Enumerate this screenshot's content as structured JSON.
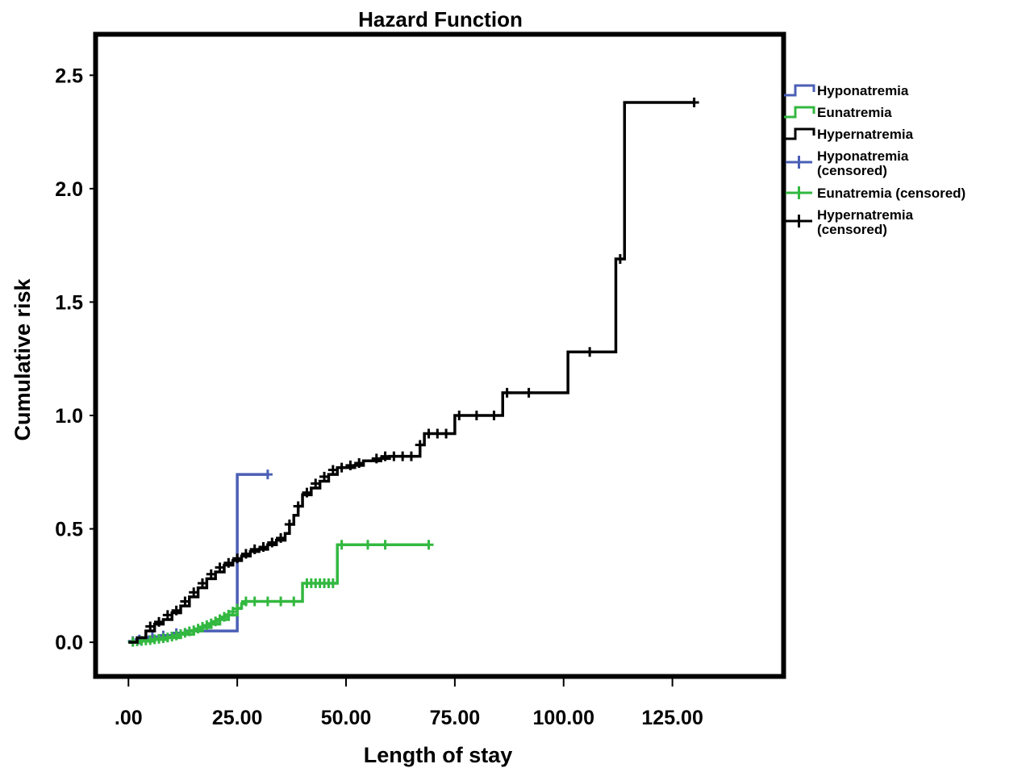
{
  "chart_data": {
    "type": "line",
    "title": "Hazard Function",
    "xlabel": "Length of stay",
    "ylabel": "Cumulative risk",
    "xlim": [
      -7,
      150
    ],
    "ylim": [
      -0.14,
      2.67
    ],
    "x_ticks": [
      {
        "value": 0,
        "label": ".00"
      },
      {
        "value": 25,
        "label": "25.00"
      },
      {
        "value": 50,
        "label": "50.00"
      },
      {
        "value": 75,
        "label": "75.00"
      },
      {
        "value": 100,
        "label": "100.00"
      },
      {
        "value": 125,
        "label": "125.00"
      }
    ],
    "y_ticks": [
      {
        "value": 0,
        "label": "0.0"
      },
      {
        "value": 0.5,
        "label": "0.5"
      },
      {
        "value": 1.0,
        "label": "1.0"
      },
      {
        "value": 1.5,
        "label": "1.5"
      },
      {
        "value": 2.0,
        "label": "2.0"
      },
      {
        "value": 2.5,
        "label": "2.5"
      }
    ],
    "grid": false,
    "legend_position": "right",
    "series": [
      {
        "name": "Hyponatremia",
        "color": "#4a5fb5",
        "steps": [
          [
            0,
            0
          ],
          [
            2,
            0.01
          ],
          [
            4,
            0.02
          ],
          [
            7,
            0.03
          ],
          [
            10,
            0.04
          ],
          [
            13,
            0.05
          ],
          [
            25,
            0.05
          ],
          [
            25,
            0.74
          ],
          [
            32,
            0.74
          ]
        ],
        "censored": [
          [
            1,
            0.005
          ],
          [
            2.5,
            0.012
          ],
          [
            4,
            0.02
          ],
          [
            5.5,
            0.025
          ],
          [
            8,
            0.03
          ],
          [
            11,
            0.04
          ],
          [
            32,
            0.74
          ]
        ]
      },
      {
        "name": "Eunatremia",
        "color": "#33b840",
        "steps": [
          [
            0,
            0
          ],
          [
            3,
            0.005
          ],
          [
            6,
            0.012
          ],
          [
            9,
            0.02
          ],
          [
            12,
            0.035
          ],
          [
            15,
            0.05
          ],
          [
            17,
            0.065
          ],
          [
            19,
            0.08
          ],
          [
            21,
            0.1
          ],
          [
            23,
            0.12
          ],
          [
            25,
            0.15
          ],
          [
            26,
            0.17
          ],
          [
            27,
            0.18
          ],
          [
            40,
            0.18
          ],
          [
            40,
            0.26
          ],
          [
            48,
            0.26
          ],
          [
            48,
            0.43
          ],
          [
            69,
            0.43
          ]
        ],
        "censored": [
          [
            1,
            0.002
          ],
          [
            2,
            0.004
          ],
          [
            3,
            0.006
          ],
          [
            4,
            0.008
          ],
          [
            5,
            0.01
          ],
          [
            6,
            0.013
          ],
          [
            7,
            0.015
          ],
          [
            8,
            0.018
          ],
          [
            9,
            0.021
          ],
          [
            10,
            0.025
          ],
          [
            11,
            0.03
          ],
          [
            12,
            0.036
          ],
          [
            13,
            0.042
          ],
          [
            14,
            0.048
          ],
          [
            15,
            0.053
          ],
          [
            16,
            0.06
          ],
          [
            17,
            0.068
          ],
          [
            18,
            0.075
          ],
          [
            19,
            0.083
          ],
          [
            20,
            0.092
          ],
          [
            21,
            0.102
          ],
          [
            22,
            0.112
          ],
          [
            23,
            0.122
          ],
          [
            24,
            0.135
          ],
          [
            25,
            0.148
          ],
          [
            27,
            0.18
          ],
          [
            29,
            0.18
          ],
          [
            32,
            0.18
          ],
          [
            35,
            0.18
          ],
          [
            38,
            0.18
          ],
          [
            41,
            0.26
          ],
          [
            42,
            0.26
          ],
          [
            43,
            0.26
          ],
          [
            44,
            0.26
          ],
          [
            45,
            0.26
          ],
          [
            46,
            0.26
          ],
          [
            47,
            0.26
          ],
          [
            49,
            0.43
          ],
          [
            55,
            0.43
          ],
          [
            59,
            0.43
          ],
          [
            69,
            0.43
          ]
        ]
      },
      {
        "name": "Hypernatremia",
        "color": "#000000",
        "steps": [
          [
            0,
            0
          ],
          [
            2,
            0.02
          ],
          [
            4,
            0.05
          ],
          [
            6,
            0.08
          ],
          [
            8,
            0.1
          ],
          [
            10,
            0.13
          ],
          [
            12,
            0.16
          ],
          [
            14,
            0.2
          ],
          [
            16,
            0.24
          ],
          [
            18,
            0.28
          ],
          [
            20,
            0.31
          ],
          [
            22,
            0.34
          ],
          [
            24,
            0.36
          ],
          [
            26,
            0.38
          ],
          [
            28,
            0.4
          ],
          [
            30,
            0.41
          ],
          [
            32,
            0.43
          ],
          [
            34,
            0.45
          ],
          [
            36,
            0.48
          ],
          [
            37,
            0.52
          ],
          [
            38,
            0.56
          ],
          [
            39,
            0.6
          ],
          [
            40,
            0.65
          ],
          [
            42,
            0.68
          ],
          [
            44,
            0.71
          ],
          [
            46,
            0.74
          ],
          [
            48,
            0.77
          ],
          [
            52,
            0.78
          ],
          [
            54,
            0.8
          ],
          [
            58,
            0.81
          ],
          [
            60,
            0.82
          ],
          [
            66,
            0.82
          ],
          [
            67,
            0.87
          ],
          [
            68,
            0.92
          ],
          [
            75,
            0.92
          ],
          [
            75,
            1.0
          ],
          [
            86,
            1.0
          ],
          [
            86,
            1.1
          ],
          [
            101,
            1.1
          ],
          [
            101,
            1.28
          ],
          [
            112,
            1.28
          ],
          [
            112,
            1.69
          ],
          [
            114,
            1.69
          ],
          [
            114,
            2.38
          ],
          [
            130,
            2.38
          ]
        ],
        "censored": [
          [
            5,
            0.07
          ],
          [
            7,
            0.09
          ],
          [
            9,
            0.12
          ],
          [
            11,
            0.14
          ],
          [
            13,
            0.18
          ],
          [
            15,
            0.22
          ],
          [
            17,
            0.26
          ],
          [
            19,
            0.3
          ],
          [
            21,
            0.33
          ],
          [
            23,
            0.35
          ],
          [
            25,
            0.37
          ],
          [
            27,
            0.39
          ],
          [
            29,
            0.41
          ],
          [
            31,
            0.42
          ],
          [
            33,
            0.44
          ],
          [
            35,
            0.46
          ],
          [
            37,
            0.52
          ],
          [
            39,
            0.6
          ],
          [
            41,
            0.66
          ],
          [
            43,
            0.7
          ],
          [
            45,
            0.73
          ],
          [
            47,
            0.76
          ],
          [
            49,
            0.77
          ],
          [
            51,
            0.78
          ],
          [
            53,
            0.79
          ],
          [
            57,
            0.81
          ],
          [
            59,
            0.82
          ],
          [
            61,
            0.82
          ],
          [
            63,
            0.82
          ],
          [
            65,
            0.82
          ],
          [
            67,
            0.87
          ],
          [
            69,
            0.92
          ],
          [
            71,
            0.92
          ],
          [
            73,
            0.92
          ],
          [
            76,
            1.0
          ],
          [
            80,
            1.0
          ],
          [
            84,
            1.0
          ],
          [
            87,
            1.1
          ],
          [
            92,
            1.1
          ],
          [
            106,
            1.28
          ],
          [
            113,
            1.69
          ],
          [
            130,
            2.38
          ]
        ]
      }
    ],
    "legend": [
      {
        "kind": "step",
        "color": "#4a5fb5",
        "lines": [
          "Hyponatremia"
        ]
      },
      {
        "kind": "step",
        "color": "#33b840",
        "lines": [
          "Eunatremia"
        ]
      },
      {
        "kind": "step",
        "color": "#000000",
        "lines": [
          "Hypernatremia"
        ]
      },
      {
        "kind": "plus",
        "color": "#4a5fb5",
        "lines": [
          "Hyponatremia",
          "(censored)"
        ]
      },
      {
        "kind": "plus",
        "color": "#33b840",
        "lines": [
          "Eunatremia (censored)"
        ]
      },
      {
        "kind": "plus",
        "color": "#000000",
        "lines": [
          "Hypernatremia",
          "(censored)"
        ]
      }
    ]
  }
}
